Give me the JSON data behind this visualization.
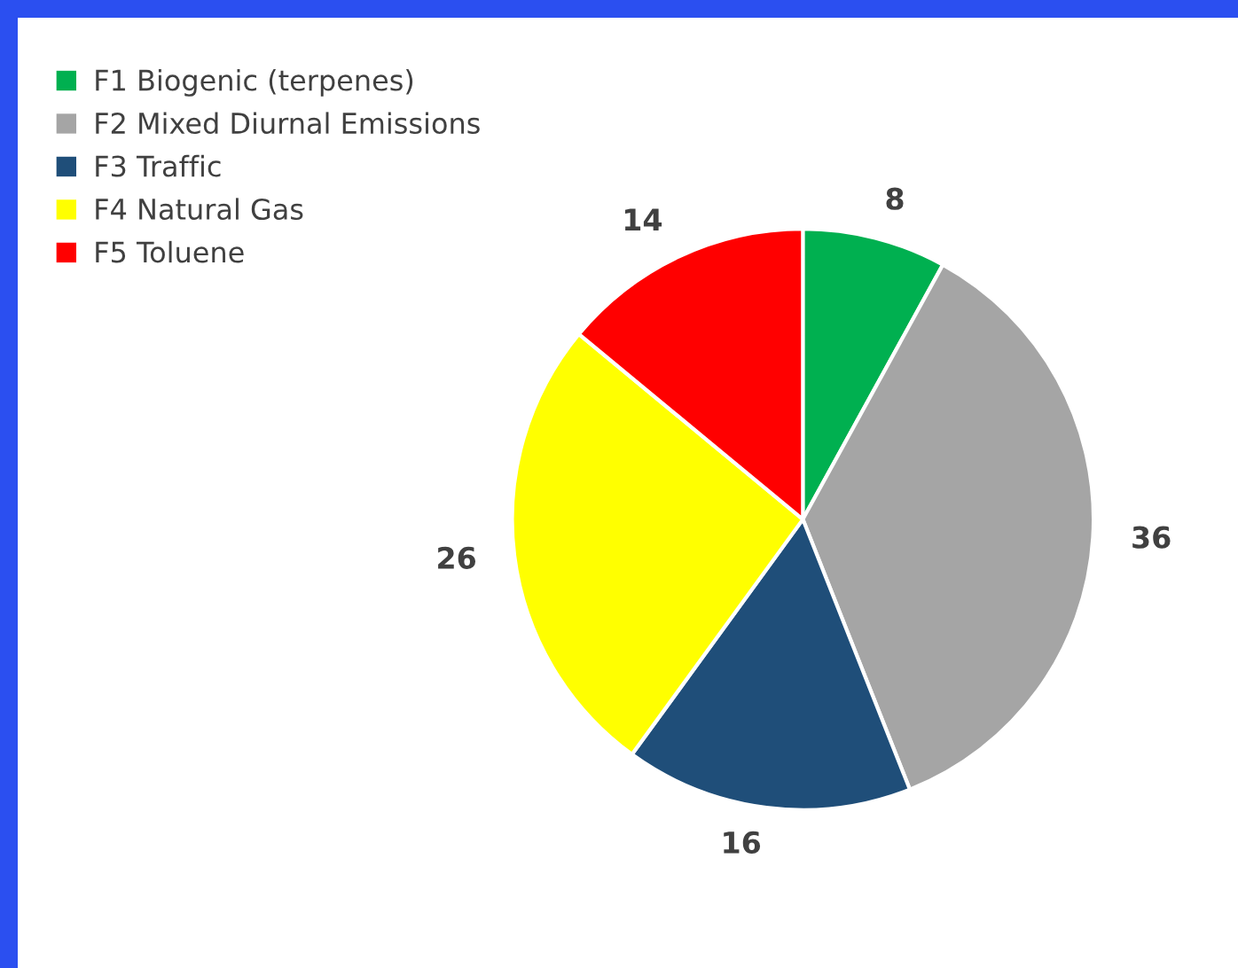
{
  "chart_data": {
    "type": "pie",
    "categories": [
      "F1 Biogenic (terpenes)",
      "F2 Mixed Diurnal Emissions",
      "F3 Traffic",
      "F4 Natural Gas",
      "F5 Toluene"
    ],
    "values": [
      8,
      36,
      16,
      26,
      14
    ],
    "colors": [
      "#00b050",
      "#a5a5a5",
      "#1f4e79",
      "#ffff00",
      "#ff0000"
    ],
    "data_labels": true,
    "legend": "top left"
  }
}
